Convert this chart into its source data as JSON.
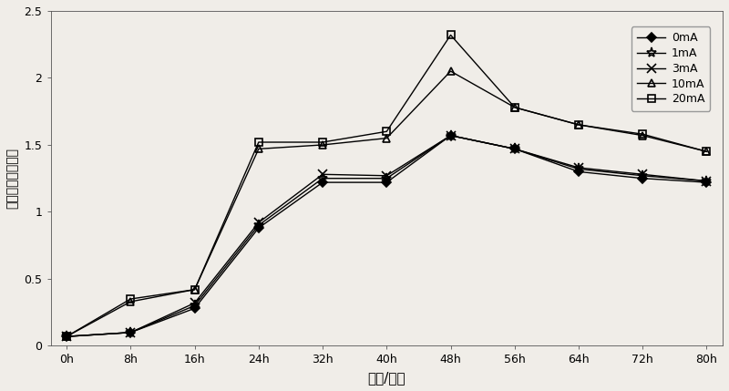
{
  "x_values": [
    0,
    8,
    16,
    24,
    32,
    40,
    48,
    56,
    64,
    72,
    80
  ],
  "x_labels": [
    "0h",
    "8h",
    "16h",
    "24h",
    "32h",
    "40h",
    "48h",
    "56h",
    "64h",
    "72h",
    "80h"
  ],
  "series": {
    "0mA": [
      0.07,
      0.1,
      0.28,
      0.88,
      1.22,
      1.22,
      1.57,
      1.47,
      1.3,
      1.25,
      1.22
    ],
    "1mA": [
      0.07,
      0.1,
      0.3,
      0.9,
      1.25,
      1.25,
      1.57,
      1.47,
      1.32,
      1.27,
      1.23
    ],
    "3mA": [
      0.07,
      0.1,
      0.32,
      0.92,
      1.28,
      1.27,
      1.57,
      1.47,
      1.33,
      1.28,
      1.23
    ],
    "10mA": [
      0.07,
      0.33,
      0.42,
      1.47,
      1.5,
      1.55,
      2.05,
      1.78,
      1.65,
      1.57,
      1.45
    ],
    "20mA": [
      0.07,
      0.35,
      0.42,
      1.52,
      1.52,
      1.6,
      2.32,
      1.78,
      1.65,
      1.58,
      1.45
    ]
  },
  "markers": {
    "0mA": "D",
    "1mA": "*",
    "3mA": "x",
    "10mA": "^",
    "20mA": "s"
  },
  "marker_filled": {
    "0mA": true,
    "1mA": true,
    "3mA": false,
    "10mA": false,
    "20mA": false
  },
  "colors": {
    "0mA": "#000000",
    "1mA": "#000000",
    "3mA": "#000000",
    "10mA": "#000000",
    "20mA": "#000000"
  },
  "linestyles": {
    "0mA": "-",
    "1mA": "-",
    "3mA": "-",
    "10mA": "-",
    "20mA": "-"
  },
  "xlabel": "时间/小时",
  "ylabel": "菌体繁殖数量／亿",
  "ylim": [
    0,
    2.5
  ],
  "yticks": [
    0,
    0.5,
    1.0,
    1.5,
    2.0,
    2.5
  ],
  "ytick_labels": [
    "0",
    "0.5",
    "1",
    "1.5",
    "2",
    "2.5"
  ],
  "title": "",
  "legend_labels": [
    "0mA",
    "1mA",
    "3mA",
    "10mA",
    "20mA"
  ],
  "figsize": [
    8.0,
    4.29
  ],
  "dpi": 100,
  "bg_color": "#f0ede8"
}
